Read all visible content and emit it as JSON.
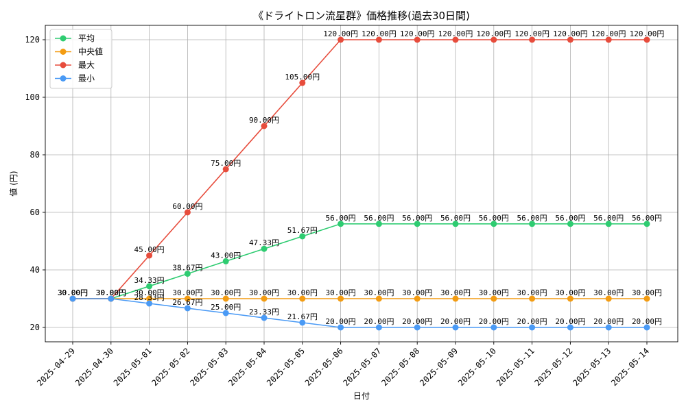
{
  "chart_data": {
    "type": "line",
    "title": "《ドライトロン流星群》価格推移(過去30日間)",
    "xlabel": "日付",
    "ylabel": "値 (円)",
    "ylim": [
      15,
      125
    ],
    "yticks": [
      20,
      40,
      60,
      80,
      100,
      120
    ],
    "grid": true,
    "legend_position": "top-left",
    "label_suffix": "円",
    "categories": [
      "2025-04-29",
      "2025-04-30",
      "2025-05-01",
      "2025-05-02",
      "2025-05-03",
      "2025-05-04",
      "2025-05-05",
      "2025-05-06",
      "2025-05-07",
      "2025-05-08",
      "2025-05-09",
      "2025-05-10",
      "2025-05-11",
      "2025-05-12",
      "2025-05-13",
      "2025-05-14"
    ],
    "series": [
      {
        "name": "平均",
        "color": "#2ecc71",
        "values": [
          30,
          30,
          34.33,
          38.67,
          43,
          47.33,
          51.67,
          56,
          56,
          56,
          56,
          56,
          56,
          56,
          56,
          56
        ]
      },
      {
        "name": "中央値",
        "color": "#f39c12",
        "values": [
          30,
          30,
          30,
          30,
          30,
          30,
          30,
          30,
          30,
          30,
          30,
          30,
          30,
          30,
          30,
          30
        ]
      },
      {
        "name": "最大",
        "color": "#e74c3c",
        "values": [
          30,
          30,
          45,
          60,
          75,
          90,
          105,
          120,
          120,
          120,
          120,
          120,
          120,
          120,
          120,
          120
        ]
      },
      {
        "name": "最小",
        "color": "#4a9af5",
        "values": [
          30,
          30,
          28.33,
          26.67,
          25,
          23.33,
          21.67,
          20,
          20,
          20,
          20,
          20,
          20,
          20,
          20,
          20
        ]
      }
    ]
  }
}
